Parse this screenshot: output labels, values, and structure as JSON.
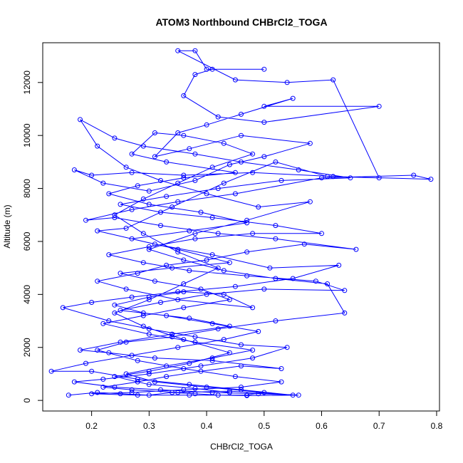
{
  "chart_data": {
    "type": "scatter",
    "title": "ATOM3 Northbound CHBrCl2_TOGA",
    "xlabel": "CHBrCl2_TOGA",
    "ylabel": "Altitude (m)",
    "xlim": [
      0.115,
      0.805
    ],
    "ylim": [
      -400,
      13500
    ],
    "xticks": [
      0.2,
      0.3,
      0.4,
      0.5,
      0.6,
      0.7,
      0.8
    ],
    "xtick_labels": [
      "0.2",
      "0.3",
      "0.4",
      "0.5",
      "0.6",
      "0.7",
      "0.8"
    ],
    "yticks": [
      0,
      2000,
      4000,
      6000,
      8000,
      10000,
      12000
    ],
    "ytick_labels": [
      "0",
      "2000",
      "4000",
      "6000",
      "8000",
      "10000",
      "12000"
    ],
    "grid": false,
    "legend": "none",
    "markers": "open circles connected by lines",
    "color": "#0000ff",
    "series": [
      {
        "points": [
          [
            0.16,
            200
          ],
          [
            0.21,
            300
          ],
          [
            0.25,
            250
          ],
          [
            0.3,
            200
          ],
          [
            0.34,
            300
          ],
          [
            0.38,
            250
          ],
          [
            0.42,
            200
          ],
          [
            0.47,
            180
          ],
          [
            0.56,
            200
          ],
          [
            0.44,
            350
          ],
          [
            0.35,
            300
          ],
          [
            0.27,
            400
          ],
          [
            0.22,
            500
          ],
          [
            0.28,
            700
          ],
          [
            0.33,
            900
          ],
          [
            0.39,
            1100
          ],
          [
            0.46,
            1300
          ],
          [
            0.53,
            1200
          ],
          [
            0.41,
            1500
          ],
          [
            0.31,
            1600
          ],
          [
            0.23,
            1800
          ],
          [
            0.18,
            1900
          ],
          [
            0.25,
            2200
          ],
          [
            0.34,
            2500
          ],
          [
            0.44,
            2800
          ],
          [
            0.37,
            3100
          ],
          [
            0.29,
            3300
          ],
          [
            0.24,
            3600
          ],
          [
            0.3,
            3900
          ],
          [
            0.36,
            4100
          ],
          [
            0.43,
            4000
          ],
          [
            0.48,
            3500
          ],
          [
            0.35,
            3800
          ],
          [
            0.26,
            4200
          ],
          [
            0.21,
            4500
          ],
          [
            0.28,
            4800
          ],
          [
            0.33,
            5100
          ],
          [
            0.4,
            5300
          ],
          [
            0.47,
            5600
          ],
          [
            0.57,
            5900
          ],
          [
            0.66,
            5700
          ],
          [
            0.52,
            6100
          ],
          [
            0.42,
            6300
          ],
          [
            0.32,
            6600
          ],
          [
            0.24,
            6900
          ],
          [
            0.19,
            6800
          ],
          [
            0.27,
            7200
          ],
          [
            0.35,
            7500
          ],
          [
            0.45,
            7800
          ],
          [
            0.6,
            8400
          ],
          [
            0.76,
            8500
          ],
          [
            0.79,
            8350
          ],
          [
            0.62,
            8450
          ],
          [
            0.48,
            8600
          ],
          [
            0.36,
            8500
          ],
          [
            0.27,
            8600
          ],
          [
            0.2,
            8500
          ],
          [
            0.17,
            8700
          ],
          [
            0.22,
            8200
          ],
          [
            0.3,
            7900
          ],
          [
            0.38,
            8300
          ],
          [
            0.44,
            8900
          ],
          [
            0.5,
            9200
          ],
          [
            0.58,
            9700
          ],
          [
            0.46,
            10000
          ],
          [
            0.37,
            9500
          ],
          [
            0.31,
            9200
          ],
          [
            0.35,
            10100
          ],
          [
            0.4,
            10400
          ],
          [
            0.46,
            10800
          ],
          [
            0.55,
            11400
          ],
          [
            0.5,
            11100
          ],
          [
            0.7,
            11100
          ],
          [
            0.5,
            10500
          ],
          [
            0.42,
            10700
          ],
          [
            0.36,
            11500
          ],
          [
            0.38,
            12300
          ],
          [
            0.41,
            12500
          ],
          [
            0.5,
            12500
          ],
          [
            0.4,
            12500
          ],
          [
            0.38,
            13200
          ],
          [
            0.35,
            13200
          ],
          [
            0.45,
            12100
          ],
          [
            0.54,
            12000
          ],
          [
            0.62,
            12100
          ],
          [
            0.7,
            8400
          ],
          [
            0.61,
            8450
          ],
          [
            0.52,
            9000
          ],
          [
            0.43,
            8200
          ],
          [
            0.34,
            7300
          ],
          [
            0.26,
            6500
          ],
          [
            0.21,
            6400
          ],
          [
            0.31,
            5900
          ],
          [
            0.41,
            5500
          ],
          [
            0.51,
            5000
          ],
          [
            0.63,
            5100
          ],
          [
            0.55,
            4600
          ],
          [
            0.45,
            4300
          ],
          [
            0.35,
            4100
          ],
          [
            0.27,
            3900
          ],
          [
            0.2,
            3700
          ],
          [
            0.15,
            3500
          ],
          [
            0.23,
            3000
          ],
          [
            0.3,
            2700
          ],
          [
            0.38,
            2400
          ],
          [
            0.46,
            2100
          ],
          [
            0.54,
            2000
          ],
          [
            0.48,
            1600
          ],
          [
            0.39,
            1300
          ],
          [
            0.3,
            1000
          ],
          [
            0.22,
            800
          ],
          [
            0.17,
            700
          ],
          [
            0.24,
            500
          ],
          [
            0.32,
            400
          ],
          [
            0.41,
            300
          ],
          [
            0.49,
            250
          ],
          [
            0.55,
            200
          ],
          [
            0.46,
            400
          ],
          [
            0.37,
            600
          ],
          [
            0.28,
            800
          ],
          [
            0.2,
            1100
          ],
          [
            0.13,
            1100
          ],
          [
            0.19,
            1400
          ],
          [
            0.27,
            1700
          ],
          [
            0.35,
            2000
          ],
          [
            0.43,
            2300
          ],
          [
            0.49,
            2600
          ],
          [
            0.41,
            2900
          ],
          [
            0.33,
            3200
          ],
          [
            0.25,
            3400
          ],
          [
            0.32,
            3700
          ],
          [
            0.4,
            4000
          ],
          [
            0.5,
            4200
          ],
          [
            0.64,
            4150
          ],
          [
            0.59,
            4500
          ],
          [
            0.47,
            4700
          ],
          [
            0.37,
            4900
          ],
          [
            0.29,
            5200
          ],
          [
            0.23,
            5500
          ],
          [
            0.3,
            5800
          ],
          [
            0.38,
            6100
          ],
          [
            0.48,
            6300
          ],
          [
            0.6,
            6300
          ],
          [
            0.52,
            6600
          ],
          [
            0.41,
            6900
          ],
          [
            0.32,
            7100
          ],
          [
            0.25,
            7400
          ],
          [
            0.33,
            7700
          ],
          [
            0.42,
            8000
          ],
          [
            0.53,
            8300
          ],
          [
            0.65,
            8400
          ],
          [
            0.56,
            8700
          ],
          [
            0.46,
            9000
          ],
          [
            0.38,
            9300
          ],
          [
            0.29,
            9600
          ],
          [
            0.24,
            9900
          ],
          [
            0.18,
            10600
          ],
          [
            0.21,
            9600
          ],
          [
            0.26,
            8800
          ],
          [
            0.32,
            8300
          ],
          [
            0.4,
            7800
          ],
          [
            0.49,
            7300
          ],
          [
            0.58,
            7500
          ],
          [
            0.47,
            6800
          ],
          [
            0.38,
            6300
          ],
          [
            0.3,
            5700
          ],
          [
            0.36,
            5300
          ],
          [
            0.43,
            4900
          ],
          [
            0.52,
            4600
          ],
          [
            0.61,
            4400
          ],
          [
            0.64,
            3300
          ],
          [
            0.52,
            3000
          ],
          [
            0.42,
            2700
          ],
          [
            0.34,
            2400
          ],
          [
            0.26,
            2200
          ],
          [
            0.21,
            1900
          ],
          [
            0.28,
            1500
          ],
          [
            0.36,
            1200
          ],
          [
            0.45,
            900
          ],
          [
            0.53,
            700
          ],
          [
            0.46,
            500
          ],
          [
            0.36,
            400
          ],
          [
            0.27,
            300
          ],
          [
            0.2,
            250
          ],
          [
            0.28,
            200
          ],
          [
            0.37,
            200
          ],
          [
            0.47,
            200
          ],
          [
            0.5,
            300
          ],
          [
            0.4,
            500
          ],
          [
            0.31,
            700
          ],
          [
            0.26,
            1000
          ],
          [
            0.33,
            1300
          ],
          [
            0.41,
            1600
          ],
          [
            0.48,
            1900
          ],
          [
            0.38,
            2200
          ],
          [
            0.3,
            2500
          ],
          [
            0.22,
            2900
          ],
          [
            0.29,
            3200
          ],
          [
            0.36,
            3500
          ],
          [
            0.44,
            3800
          ],
          [
            0.39,
            4200
          ],
          [
            0.31,
            4500
          ],
          [
            0.25,
            4800
          ],
          [
            0.34,
            5000
          ],
          [
            0.44,
            5200
          ],
          [
            0.35,
            5700
          ],
          [
            0.27,
            6100
          ],
          [
            0.37,
            6400
          ],
          [
            0.47,
            6700
          ],
          [
            0.39,
            7100
          ],
          [
            0.3,
            7400
          ],
          [
            0.23,
            7800
          ],
          [
            0.28,
            8100
          ],
          [
            0.36,
            8400
          ],
          [
            0.45,
            8600
          ],
          [
            0.33,
            9000
          ],
          [
            0.27,
            9300
          ],
          [
            0.31,
            10100
          ],
          [
            0.36,
            10000
          ],
          [
            0.43,
            9700
          ],
          [
            0.48,
            9300
          ],
          [
            0.41,
            8800
          ],
          [
            0.35,
            8200
          ],
          [
            0.29,
            7600
          ],
          [
            0.24,
            7000
          ],
          [
            0.29,
            6300
          ],
          [
            0.35,
            5600
          ],
          [
            0.42,
            5000
          ],
          [
            0.36,
            4400
          ],
          [
            0.3,
            3800
          ],
          [
            0.24,
            3300
          ],
          [
            0.29,
            2800
          ],
          [
            0.36,
            2300
          ],
          [
            0.44,
            1800
          ],
          [
            0.37,
            1400
          ],
          [
            0.3,
            1100
          ],
          [
            0.24,
            900
          ],
          [
            0.3,
            600
          ],
          [
            0.38,
            450
          ],
          [
            0.44,
            300
          ]
        ]
      }
    ]
  }
}
